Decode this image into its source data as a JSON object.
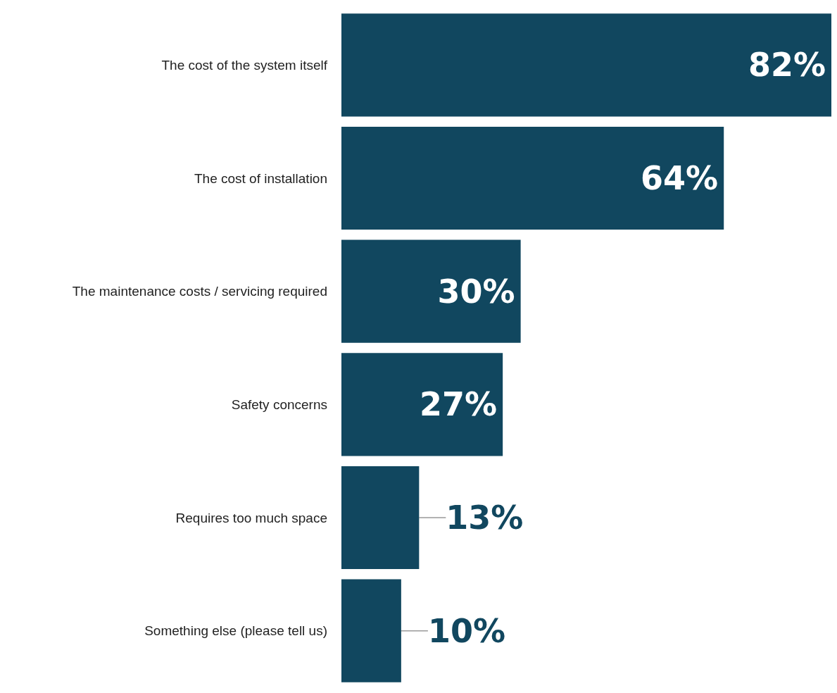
{
  "chart_data": {
    "type": "bar",
    "orientation": "horizontal",
    "categories": [
      "The cost of the system itself",
      "The cost of installation",
      "The maintenance costs / servicing required",
      "Safety concerns",
      "Requires too much space",
      "Something else (please tell us)"
    ],
    "values": [
      82,
      64,
      30,
      27,
      13,
      10
    ],
    "value_labels": [
      "82%",
      "64%",
      "30%",
      "27%",
      "13%",
      "10%"
    ],
    "color": "#11475f",
    "grid": false
  }
}
